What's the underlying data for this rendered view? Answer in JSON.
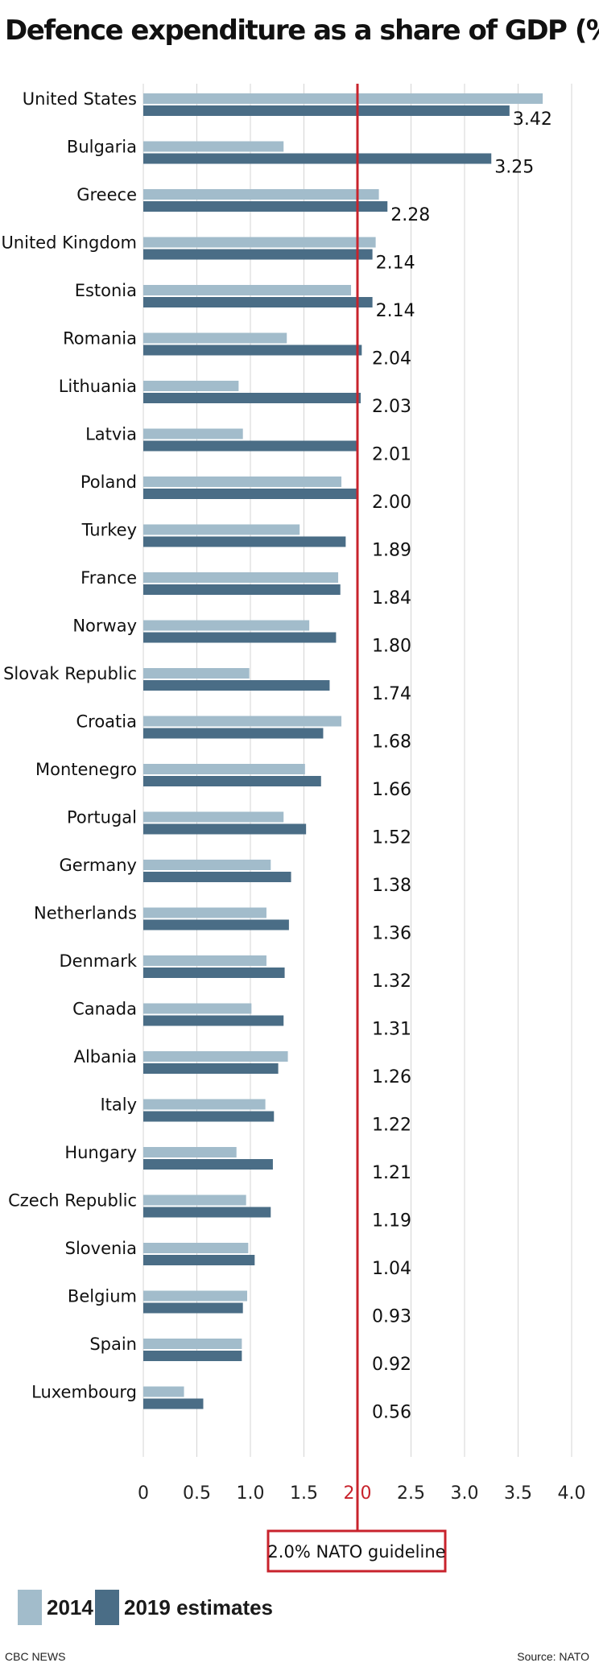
{
  "title": "Defence expenditure as a share of GDP (%)",
  "colors": {
    "s2014": "#a2bccb",
    "s2019": "#4a6d86",
    "guideline": "#c8232c"
  },
  "legend": {
    "s2014": "2014",
    "s2019": "2019 estimates"
  },
  "guideline_label": "2.0% NATO guideline",
  "footer": {
    "credit": "CBC NEWS",
    "source": "Source: NATO"
  },
  "chart_data": {
    "type": "bar",
    "orientation": "horizontal",
    "categories": [
      "United States",
      "Bulgaria",
      "Greece",
      "United Kingdom",
      "Estonia",
      "Romania",
      "Lithuania",
      "Latvia",
      "Poland",
      "Turkey",
      "France",
      "Norway",
      "Slovak Republic",
      "Croatia",
      "Montenegro",
      "Portugal",
      "Germany",
      "Netherlands",
      "Denmark",
      "Canada",
      "Albania",
      "Italy",
      "Hungary",
      "Czech Republic",
      "Slovenia",
      "Belgium",
      "Spain",
      "Luxembourg"
    ],
    "series": [
      {
        "name": "2014",
        "values": [
          3.73,
          1.31,
          2.2,
          2.17,
          1.94,
          1.34,
          0.89,
          0.93,
          1.85,
          1.46,
          1.82,
          1.55,
          0.99,
          1.85,
          1.51,
          1.31,
          1.19,
          1.15,
          1.15,
          1.01,
          1.35,
          1.14,
          0.87,
          0.96,
          0.98,
          0.97,
          0.92,
          0.38
        ]
      },
      {
        "name": "2019 estimates",
        "values": [
          3.42,
          3.25,
          2.28,
          2.14,
          2.14,
          2.04,
          2.03,
          2.01,
          2.0,
          1.89,
          1.84,
          1.8,
          1.74,
          1.68,
          1.66,
          1.52,
          1.38,
          1.36,
          1.32,
          1.31,
          1.26,
          1.22,
          1.21,
          1.19,
          1.04,
          0.93,
          0.92,
          0.56
        ]
      }
    ],
    "value_labels": [
      "3.42",
      "3.25",
      "2.28",
      "2.14",
      "2.14",
      "2.04",
      "2.03",
      "2.01",
      "2.00",
      "1.89",
      "1.84",
      "1.80",
      "1.74",
      "1.68",
      "1.66",
      "1.52",
      "1.38",
      "1.36",
      "1.32",
      "1.31",
      "1.26",
      "1.22",
      "1.21",
      "1.19",
      "1.04",
      "0.93",
      "0.92",
      "0.56"
    ],
    "xticks": [
      "0",
      "0.5",
      "1.0",
      "1.5",
      "2.0",
      "2.5",
      "3.0",
      "3.5",
      "4.0"
    ],
    "xlim": [
      0,
      4.0
    ],
    "reference_line": 2.0,
    "grid": true
  }
}
